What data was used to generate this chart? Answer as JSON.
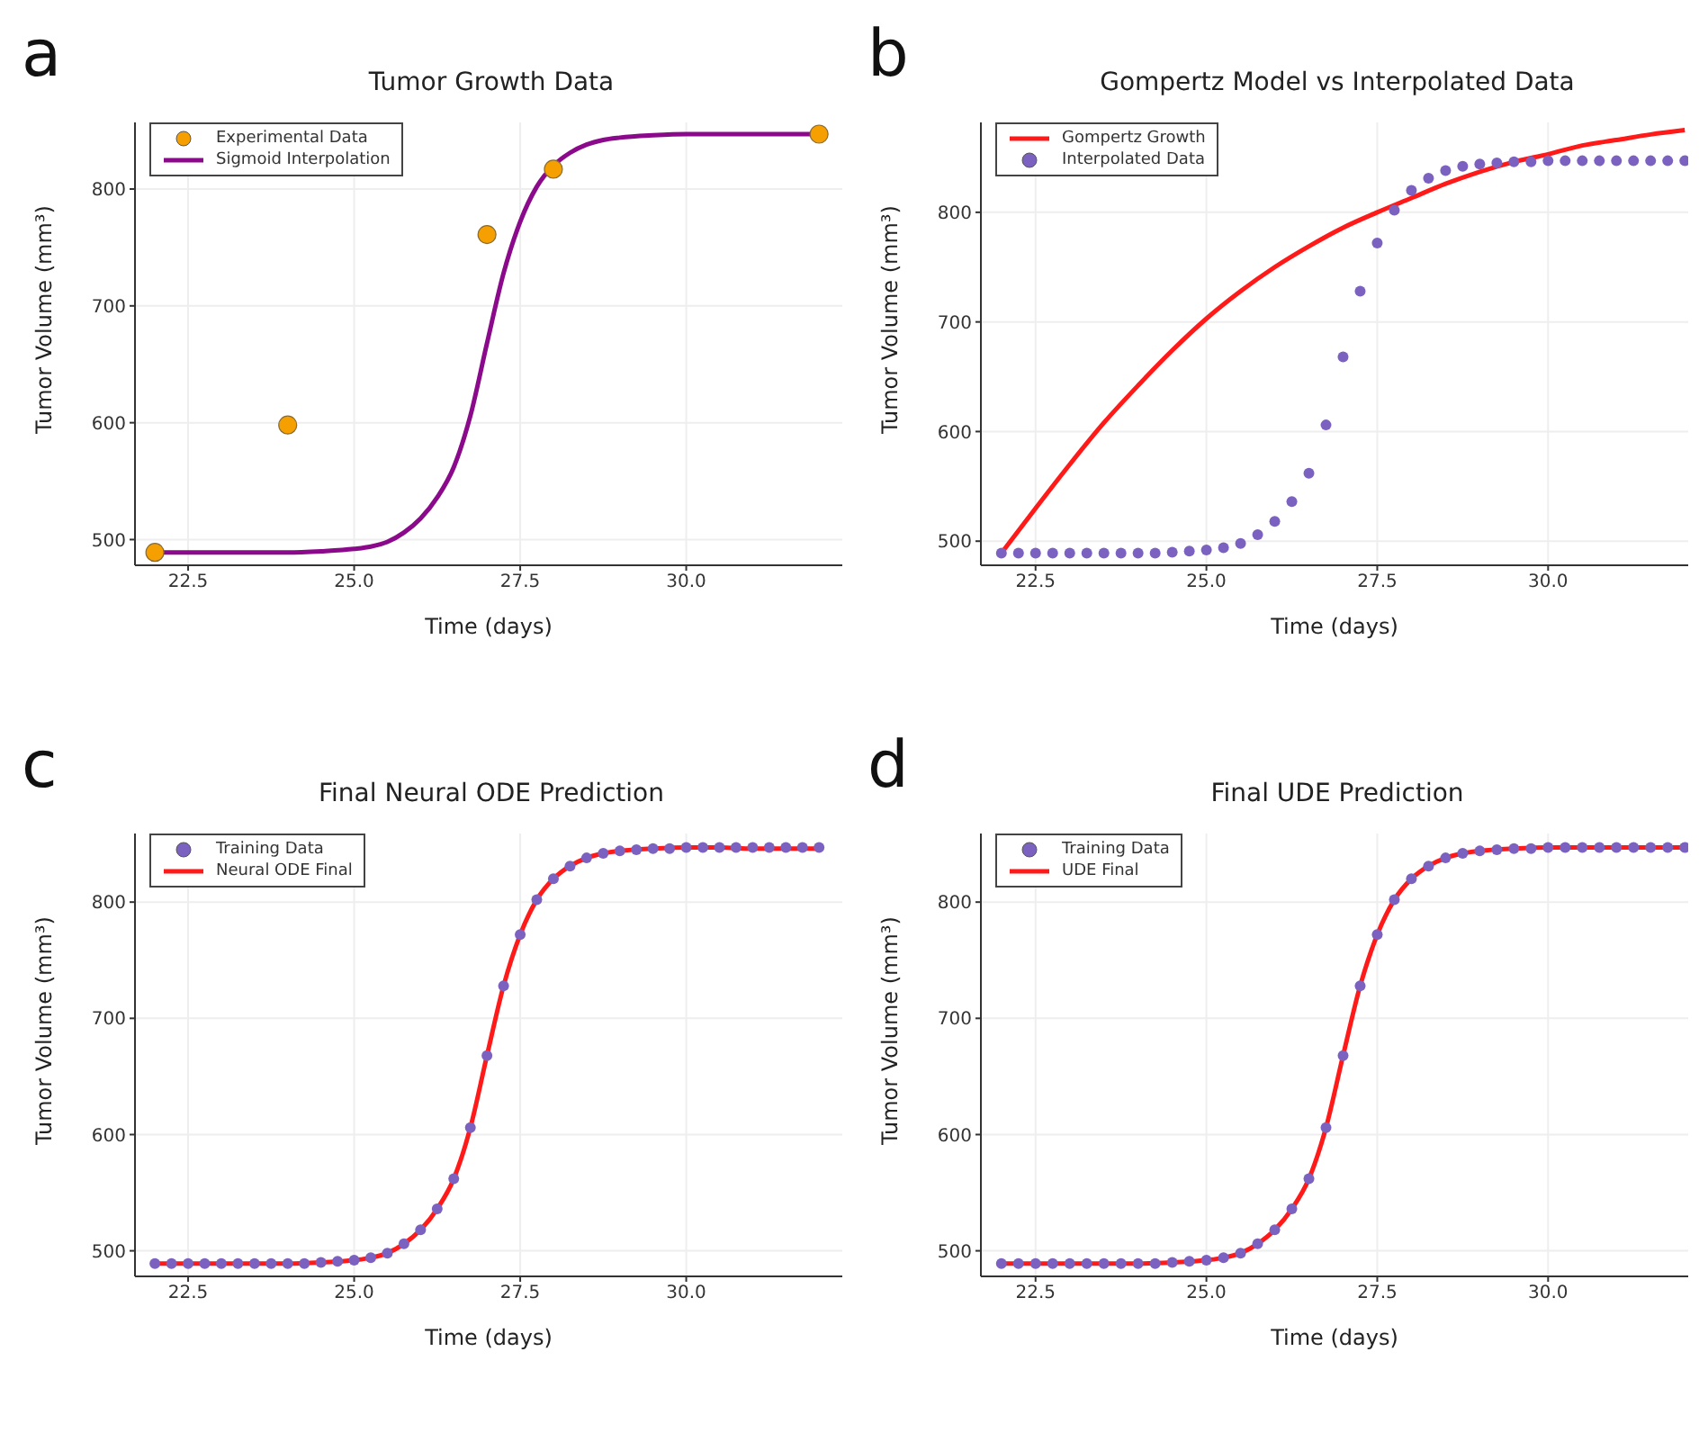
{
  "chart_data": [
    {
      "type": "line",
      "title": "Tumor Growth Data",
      "annotations": [
        "a"
      ],
      "xlabel": "Time (days)",
      "ylabel": "Tumor Volume (mm³)",
      "xlim": [
        21.7,
        32.35
      ],
      "xticks": [
        {
          "value": 22.5,
          "label": "22.5"
        },
        {
          "value": 25,
          "label": "25.0"
        },
        {
          "value": 27.5,
          "label": "27.5"
        },
        {
          "value": 30,
          "label": "30.0"
        }
      ],
      "ylim": [
        478,
        857
      ],
      "yticks": [
        500,
        600,
        700,
        800
      ],
      "grid": true,
      "legend": "top left",
      "series": [
        {
          "name": "Experimental Data",
          "type": "scatter",
          "marker": "circle",
          "color": "#f5a000",
          "x": [
            22,
            24,
            27,
            28,
            32
          ],
          "values": [
            489,
            598,
            761,
            817,
            847
          ]
        },
        {
          "name": "Sigmoid Interpolation",
          "type": "line",
          "color": "#8b0a8b",
          "x": [
            22,
            22.5,
            23,
            23.5,
            24,
            24.5,
            25,
            25.25,
            25.5,
            25.75,
            26,
            26.25,
            26.5,
            26.75,
            27,
            27.25,
            27.5,
            27.75,
            28,
            28.25,
            28.5,
            28.75,
            29,
            29.5,
            30,
            30.5,
            31,
            31.5,
            32
          ],
          "values": [
            489,
            489,
            489,
            489,
            489,
            490,
            492,
            494,
            498,
            506,
            518,
            536,
            562,
            606,
            668,
            728,
            772,
            802,
            820,
            831,
            838,
            842,
            844,
            846,
            847,
            847,
            847,
            847,
            847
          ]
        }
      ]
    },
    {
      "type": "line",
      "title": "Gompertz Model vs Interpolated Data",
      "annotations": [
        "b"
      ],
      "xlabel": "Time (days)",
      "ylabel": "Tumor Volume (mm³)",
      "xlim": [
        21.7,
        32.05
      ],
      "xticks": [
        {
          "value": 22.5,
          "label": "22.5"
        },
        {
          "value": 25,
          "label": "25.0"
        },
        {
          "value": 27.5,
          "label": "27.5"
        },
        {
          "value": 30,
          "label": "30.0"
        }
      ],
      "ylim": [
        478,
        882
      ],
      "yticks": [
        500,
        600,
        700,
        800
      ],
      "grid": true,
      "legend": "top left",
      "series": [
        {
          "name": "Gompertz Growth",
          "type": "line",
          "color": "#ff1a1a",
          "x": [
            22,
            22.5,
            23,
            23.5,
            24,
            24.5,
            25,
            25.5,
            26,
            26.5,
            27,
            27.5,
            28,
            28.5,
            29,
            29.5,
            30,
            30.5,
            31,
            31.5,
            32
          ],
          "values": [
            489,
            530,
            570,
            608,
            642,
            674,
            703,
            728,
            750,
            769,
            786,
            800,
            813,
            826,
            837,
            846,
            853,
            861,
            866,
            871,
            875
          ]
        },
        {
          "name": "Interpolated Data",
          "type": "scatter",
          "marker": "circle",
          "color": "#7b62c0",
          "x": [
            22,
            22.25,
            22.5,
            22.75,
            23,
            23.25,
            23.5,
            23.75,
            24,
            24.25,
            24.5,
            24.75,
            25,
            25.25,
            25.5,
            25.75,
            26,
            26.25,
            26.5,
            26.75,
            27,
            27.25,
            27.5,
            27.75,
            28,
            28.25,
            28.5,
            28.75,
            29,
            29.25,
            29.5,
            29.75,
            30,
            30.25,
            30.5,
            30.75,
            31,
            31.25,
            31.5,
            31.75,
            32
          ],
          "values": [
            489,
            489,
            489,
            489,
            489,
            489,
            489,
            489,
            489,
            489,
            490,
            491,
            492,
            494,
            498,
            506,
            518,
            536,
            562,
            606,
            668,
            728,
            772,
            802,
            820,
            831,
            838,
            842,
            844,
            845,
            846,
            846,
            847,
            847,
            847,
            847,
            847,
            847,
            847,
            847,
            847
          ]
        }
      ]
    },
    {
      "type": "line",
      "title": "Final Neural ODE Prediction",
      "annotations": [
        "c"
      ],
      "xlabel": "Time (days)",
      "ylabel": "Tumor Volume (mm³)",
      "xlim": [
        21.7,
        32.35
      ],
      "xticks": [
        {
          "value": 22.5,
          "label": "22.5"
        },
        {
          "value": 25,
          "label": "25.0"
        },
        {
          "value": 27.5,
          "label": "27.5"
        },
        {
          "value": 30,
          "label": "30.0"
        }
      ],
      "ylim": [
        478,
        859
      ],
      "yticks": [
        500,
        600,
        700,
        800
      ],
      "grid": true,
      "legend": "top left",
      "series": [
        {
          "name": "Training Data",
          "type": "scatter",
          "marker": "circle",
          "color": "#7b62c0",
          "x": [
            22,
            22.25,
            22.5,
            22.75,
            23,
            23.25,
            23.5,
            23.75,
            24,
            24.25,
            24.5,
            24.75,
            25,
            25.25,
            25.5,
            25.75,
            26,
            26.25,
            26.5,
            26.75,
            27,
            27.25,
            27.5,
            27.75,
            28,
            28.25,
            28.5,
            28.75,
            29,
            29.25,
            29.5,
            29.75,
            30,
            30.25,
            30.5,
            30.75,
            31,
            31.25,
            31.5,
            31.75,
            32
          ],
          "values": [
            489,
            489,
            489,
            489,
            489,
            489,
            489,
            489,
            489,
            489,
            490,
            491,
            492,
            494,
            498,
            506,
            518,
            536,
            562,
            606,
            668,
            728,
            772,
            802,
            820,
            831,
            838,
            842,
            844,
            845,
            846,
            846,
            847,
            847,
            847,
            847,
            847,
            847,
            847,
            847,
            847
          ]
        },
        {
          "name": "Neural ODE Final",
          "type": "line",
          "color": "#ff1a1a",
          "x": [
            22,
            22.5,
            23,
            23.5,
            24,
            24.5,
            25,
            25.25,
            25.5,
            25.75,
            26,
            26.25,
            26.5,
            26.75,
            27,
            27.25,
            27.5,
            27.75,
            28,
            28.25,
            28.5,
            28.75,
            29,
            29.5,
            30,
            30.5,
            31,
            31.5,
            32
          ],
          "values": [
            489,
            489,
            489,
            489,
            489,
            490,
            492,
            494,
            498,
            506,
            518,
            536,
            562,
            606,
            668,
            728,
            772,
            802,
            820,
            831,
            838,
            842,
            844,
            846,
            847,
            847,
            846,
            846,
            846
          ]
        }
      ]
    },
    {
      "type": "line",
      "title": "Final UDE Prediction",
      "annotations": [
        "d"
      ],
      "xlabel": "Time (days)",
      "ylabel": "Tumor Volume (mm³)",
      "xlim": [
        21.7,
        32.05
      ],
      "xticks": [
        {
          "value": 22.5,
          "label": "22.5"
        },
        {
          "value": 25,
          "label": "25.0"
        },
        {
          "value": 27.5,
          "label": "27.5"
        },
        {
          "value": 30,
          "label": "30.0"
        }
      ],
      "ylim": [
        478,
        859
      ],
      "yticks": [
        500,
        600,
        700,
        800
      ],
      "grid": true,
      "legend": "top left",
      "series": [
        {
          "name": "Training Data",
          "type": "scatter",
          "marker": "circle",
          "color": "#7b62c0",
          "x": [
            22,
            22.25,
            22.5,
            22.75,
            23,
            23.25,
            23.5,
            23.75,
            24,
            24.25,
            24.5,
            24.75,
            25,
            25.25,
            25.5,
            25.75,
            26,
            26.25,
            26.5,
            26.75,
            27,
            27.25,
            27.5,
            27.75,
            28,
            28.25,
            28.5,
            28.75,
            29,
            29.25,
            29.5,
            29.75,
            30,
            30.25,
            30.5,
            30.75,
            31,
            31.25,
            31.5,
            31.75,
            32
          ],
          "values": [
            489,
            489,
            489,
            489,
            489,
            489,
            489,
            489,
            489,
            489,
            490,
            491,
            492,
            494,
            498,
            506,
            518,
            536,
            562,
            606,
            668,
            728,
            772,
            802,
            820,
            831,
            838,
            842,
            844,
            845,
            846,
            846,
            847,
            847,
            847,
            847,
            847,
            847,
            847,
            847,
            847
          ]
        },
        {
          "name": "UDE Final",
          "type": "line",
          "color": "#ff1a1a",
          "x": [
            22,
            22.5,
            23,
            23.5,
            24,
            24.5,
            25,
            25.25,
            25.5,
            25.75,
            26,
            26.25,
            26.5,
            26.75,
            27,
            27.25,
            27.5,
            27.75,
            28,
            28.25,
            28.5,
            28.75,
            29,
            29.5,
            30,
            30.5,
            31,
            31.5,
            32
          ],
          "values": [
            489,
            489,
            489,
            489,
            489,
            490,
            492,
            494,
            498,
            506,
            518,
            536,
            562,
            606,
            668,
            728,
            772,
            802,
            820,
            831,
            838,
            842,
            844,
            846,
            847,
            847,
            847,
            847,
            847
          ]
        }
      ]
    }
  ]
}
